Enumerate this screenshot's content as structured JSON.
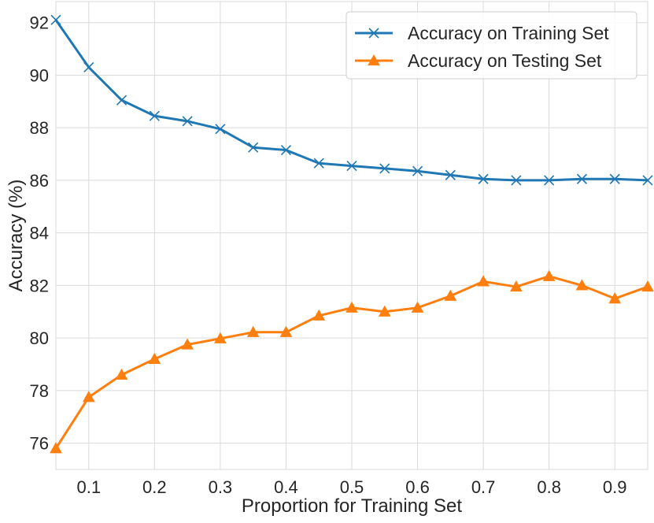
{
  "chart_data": {
    "type": "line",
    "title": "",
    "xlabel": "Proportion for Training Set",
    "ylabel": "Accuracy (%)",
    "xlim": [
      0.05,
      0.95
    ],
    "ylim": [
      75,
      92.8
    ],
    "xticks": [
      0.1,
      0.2,
      0.3,
      0.4,
      0.5,
      0.6,
      0.7,
      0.8,
      0.9
    ],
    "yticks": [
      76,
      78,
      80,
      82,
      84,
      86,
      88,
      90,
      92
    ],
    "grid": true,
    "legend_position": "top-right",
    "x": [
      0.05,
      0.1,
      0.15,
      0.2,
      0.25,
      0.3,
      0.35,
      0.4,
      0.45,
      0.5,
      0.55,
      0.6,
      0.65,
      0.7,
      0.75,
      0.8,
      0.85,
      0.9,
      0.95
    ],
    "series": [
      {
        "name": "Accuracy on Training Set",
        "color": "#1f77b4",
        "marker": "x",
        "values": [
          92.1,
          90.3,
          89.05,
          88.45,
          88.25,
          87.95,
          87.25,
          87.15,
          86.65,
          86.55,
          86.45,
          86.35,
          86.2,
          86.05,
          86.0,
          86.0,
          86.05,
          86.05,
          86.0
        ]
      },
      {
        "name": "Accuracy on Testing Set",
        "color": "#ff7f0e",
        "marker": "triangle",
        "values": [
          75.8,
          77.75,
          78.6,
          79.2,
          79.75,
          79.98,
          80.22,
          80.22,
          80.85,
          81.15,
          81.0,
          81.15,
          81.6,
          82.15,
          81.95,
          82.35,
          82.0,
          81.5,
          81.95
        ]
      }
    ]
  }
}
